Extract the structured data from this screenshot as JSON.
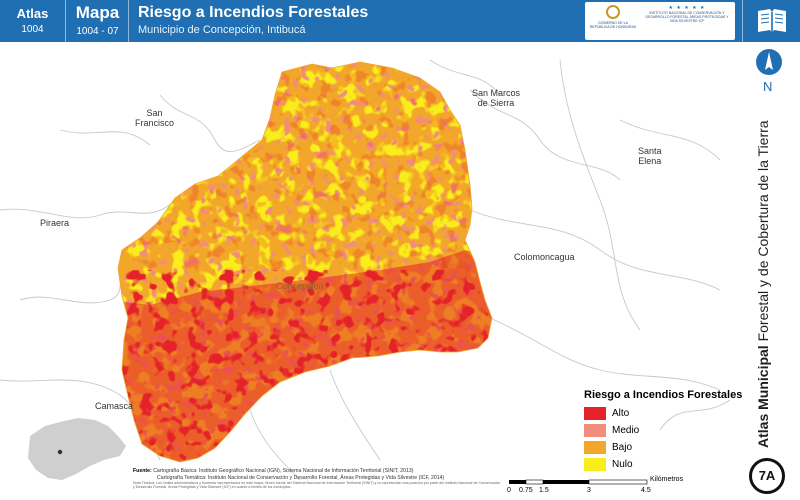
{
  "header": {
    "atlas_label": "Atlas",
    "atlas_code": "1004",
    "mapa_label": "Mapa",
    "mapa_code": "1004 - 07",
    "title": "Riesgo a Incendios Forestales",
    "subtitle": "Municipio de Concepción, Intibucá",
    "logo_left_text": "GOBIERNO DE LA REPÚBLICA DE HONDURAS",
    "logo_right_text": "INSTITUTO NACIONAL DE CONSERVACIÓN Y DESARROLLO FORESTAL ÁREAS PROTEGIDAS Y VIDA SILVESTRE ICF",
    "book_icon": "open-book-icon"
  },
  "map": {
    "places": [
      {
        "id": "san-francisco",
        "text": "San\nFrancisco"
      },
      {
        "id": "san-marcos",
        "text": "San Marcos\nde Sierra"
      },
      {
        "id": "santa-elena",
        "text": "Santa\nElena"
      },
      {
        "id": "piraera",
        "text": "Piraera"
      },
      {
        "id": "colomoncagua",
        "text": "Colomoncagua"
      },
      {
        "id": "concepcion",
        "text": "Concepción"
      },
      {
        "id": "camasca",
        "text": "Camasca"
      }
    ],
    "colors": {
      "alto": "#e5232a",
      "medio": "#f28c7d",
      "bajo": "#f2a62a",
      "nulo": "#f9ee1c",
      "roads": "#c8c8c8",
      "inset": "#cfcfcf"
    }
  },
  "legend": {
    "title": "Riesgo a Incendios Forestales",
    "items": [
      {
        "label": "Alto",
        "color": "#e5232a"
      },
      {
        "label": "Medio",
        "color": "#f28c7d"
      },
      {
        "label": "Bajo",
        "color": "#f2a62a"
      },
      {
        "label": "Nulo",
        "color": "#f9ee1c"
      }
    ]
  },
  "sources": {
    "label": "Fuente:",
    "line1": "Cartografía Básica: Instituto Geográfico Nacional (IGN), Sistema Nacional de Información Territorial (SINIT, 2013)",
    "line2": "Cartografía Temática: Instituto Nacional de Conservación y Desarrollo Forestal, Áreas Protegidas y Vida Silvestre (ICF, 2014)",
    "note": "Nota Técnica: Los límites administrativos y fronteras representados en este mapa, tienen fuente del Sistema Nacional de Información Territorial (SINIT) y no representan una posición por parte del Instituto Nacional de Conservación y Desarrollo Forestal, Áreas Protegidas y Vida Silvestre (ICF) en cuanto a límites de los municipios."
  },
  "scale": {
    "ticks": [
      "0",
      "0.75",
      "1.5",
      "3",
      "4.5"
    ],
    "unit": "Kilómetros"
  },
  "side": {
    "title_bold": "Atlas Municipal",
    "title_rest": "Forestal y de Cobertura de la Tierra",
    "north_letter": "N",
    "badge": "7A"
  }
}
